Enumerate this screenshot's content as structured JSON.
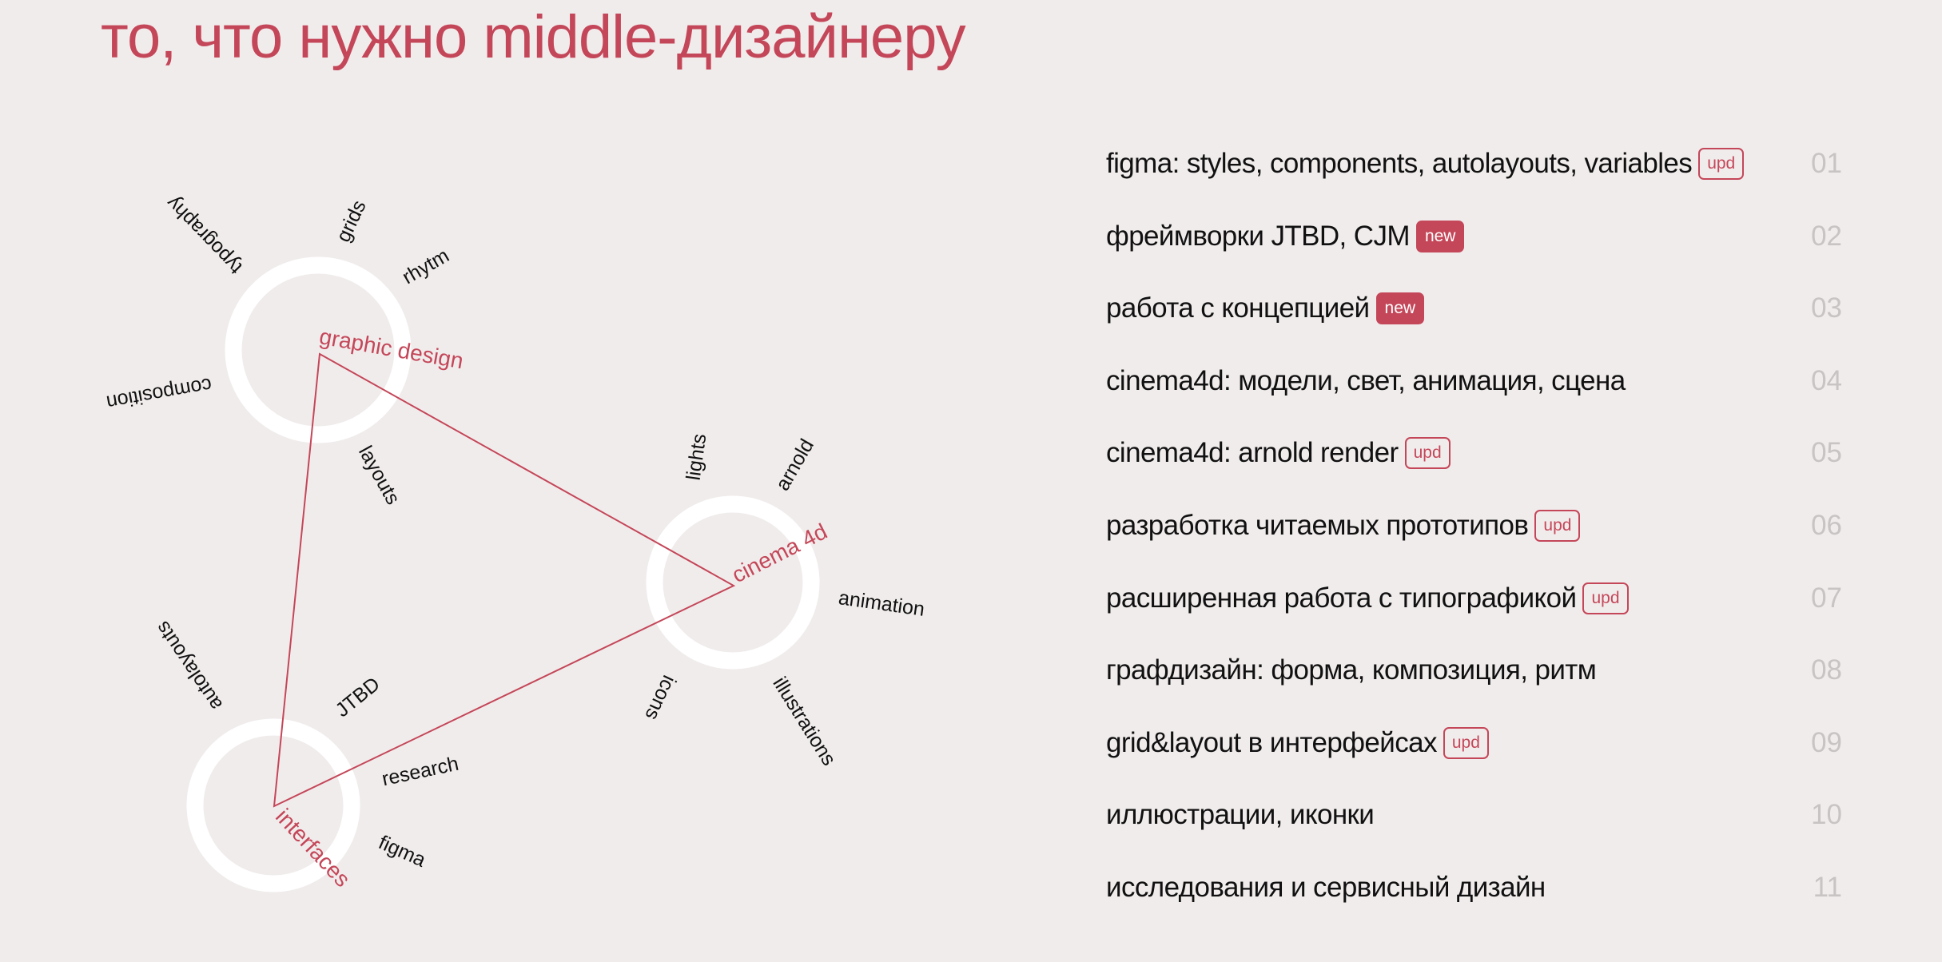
{
  "title": "то, что нужно middle-дизайнеру",
  "colors": {
    "accent": "#c44759",
    "background": "#f1ecec",
    "number": "#c9c4c4"
  },
  "diagram": {
    "nodes": [
      {
        "label": "graphic design"
      },
      {
        "label": "cinema 4d"
      },
      {
        "label": "interfaces"
      }
    ],
    "tags": {
      "graphic_design": [
        "typography",
        "grids",
        "rhytm",
        "composition",
        "layouts"
      ],
      "cinema_4d": [
        "lights",
        "arnold",
        "animation",
        "icons",
        "illustrations"
      ],
      "interfaces": [
        "autolayouts",
        "JTBD",
        "research",
        "figma"
      ]
    }
  },
  "list": [
    {
      "text": "figma: styles, components, autolayouts, variables",
      "badge": "upd",
      "num": "01"
    },
    {
      "text": "фреймворки JTBD, CJM",
      "badge": "new",
      "num": "02"
    },
    {
      "text": "работа с концепцией",
      "badge": "new",
      "num": "03"
    },
    {
      "text": "cinema4d: модели, свет, анимация, сцена",
      "badge": null,
      "num": "04"
    },
    {
      "text": "cinema4d: arnold render",
      "badge": "upd",
      "num": "05"
    },
    {
      "text": "разработка читаемых прототипов",
      "badge": "upd",
      "num": "06"
    },
    {
      "text": "расширенная работа с типографикой",
      "badge": "upd",
      "num": "07"
    },
    {
      "text": "графдизайн: форма, композиция, ритм",
      "badge": null,
      "num": "08"
    },
    {
      "text": "grid&layout в интерфейсах",
      "badge": "upd",
      "num": "09"
    },
    {
      "text": "иллюстрации, иконки",
      "badge": null,
      "num": "10"
    },
    {
      "text": "исследования и сервисный дизайн",
      "badge": null,
      "num": "11"
    }
  ]
}
